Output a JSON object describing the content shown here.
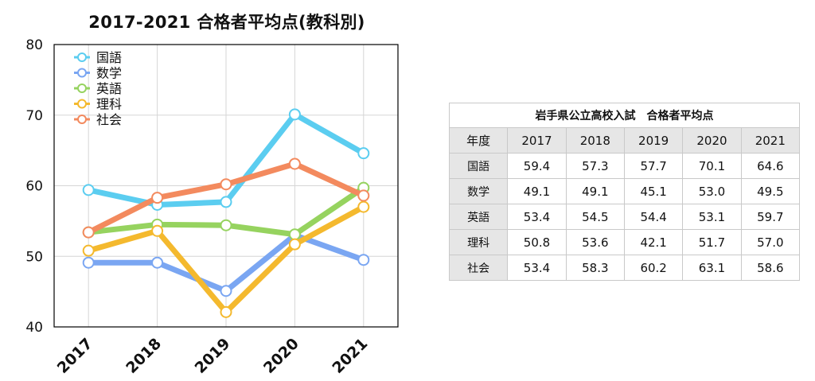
{
  "chart_data": {
    "type": "line",
    "title": "2017-2021 合格者平均点(教科別)",
    "x": [
      "2017",
      "2018",
      "2019",
      "2020",
      "2021"
    ],
    "ylim": [
      40,
      80
    ],
    "yticks": [
      40,
      50,
      60,
      70,
      80
    ],
    "grid": true,
    "legend": "top-left",
    "series": [
      {
        "name": "国語",
        "color": "#5bcdf0",
        "values": [
          59.4,
          57.3,
          57.7,
          70.1,
          64.6
        ]
      },
      {
        "name": "数学",
        "color": "#7aa6f2",
        "values": [
          49.1,
          49.1,
          45.1,
          53.0,
          49.5
        ]
      },
      {
        "name": "英語",
        "color": "#96d35f",
        "values": [
          53.4,
          54.5,
          54.4,
          53.1,
          59.7
        ]
      },
      {
        "name": "理科",
        "color": "#f4b92e",
        "values": [
          50.8,
          53.6,
          42.1,
          51.7,
          57.0
        ]
      },
      {
        "name": "社会",
        "color": "#f38a5e",
        "values": [
          53.4,
          58.3,
          60.2,
          63.1,
          58.6
        ]
      }
    ]
  },
  "table": {
    "caption": "岩手県公立高校入試　合格者平均点",
    "corner": "年度",
    "columns": [
      "2017",
      "2018",
      "2019",
      "2020",
      "2021"
    ],
    "rows": [
      {
        "label": "国語",
        "values": [
          "59.4",
          "57.3",
          "57.7",
          "70.1",
          "64.6"
        ]
      },
      {
        "label": "数学",
        "values": [
          "49.1",
          "49.1",
          "45.1",
          "53.0",
          "49.5"
        ]
      },
      {
        "label": "英語",
        "values": [
          "53.4",
          "54.5",
          "54.4",
          "53.1",
          "59.7"
        ]
      },
      {
        "label": "理科",
        "values": [
          "50.8",
          "53.6",
          "42.1",
          "51.7",
          "57.0"
        ]
      },
      {
        "label": "社会",
        "values": [
          "53.4",
          "58.3",
          "60.2",
          "63.1",
          "58.6"
        ]
      }
    ]
  }
}
